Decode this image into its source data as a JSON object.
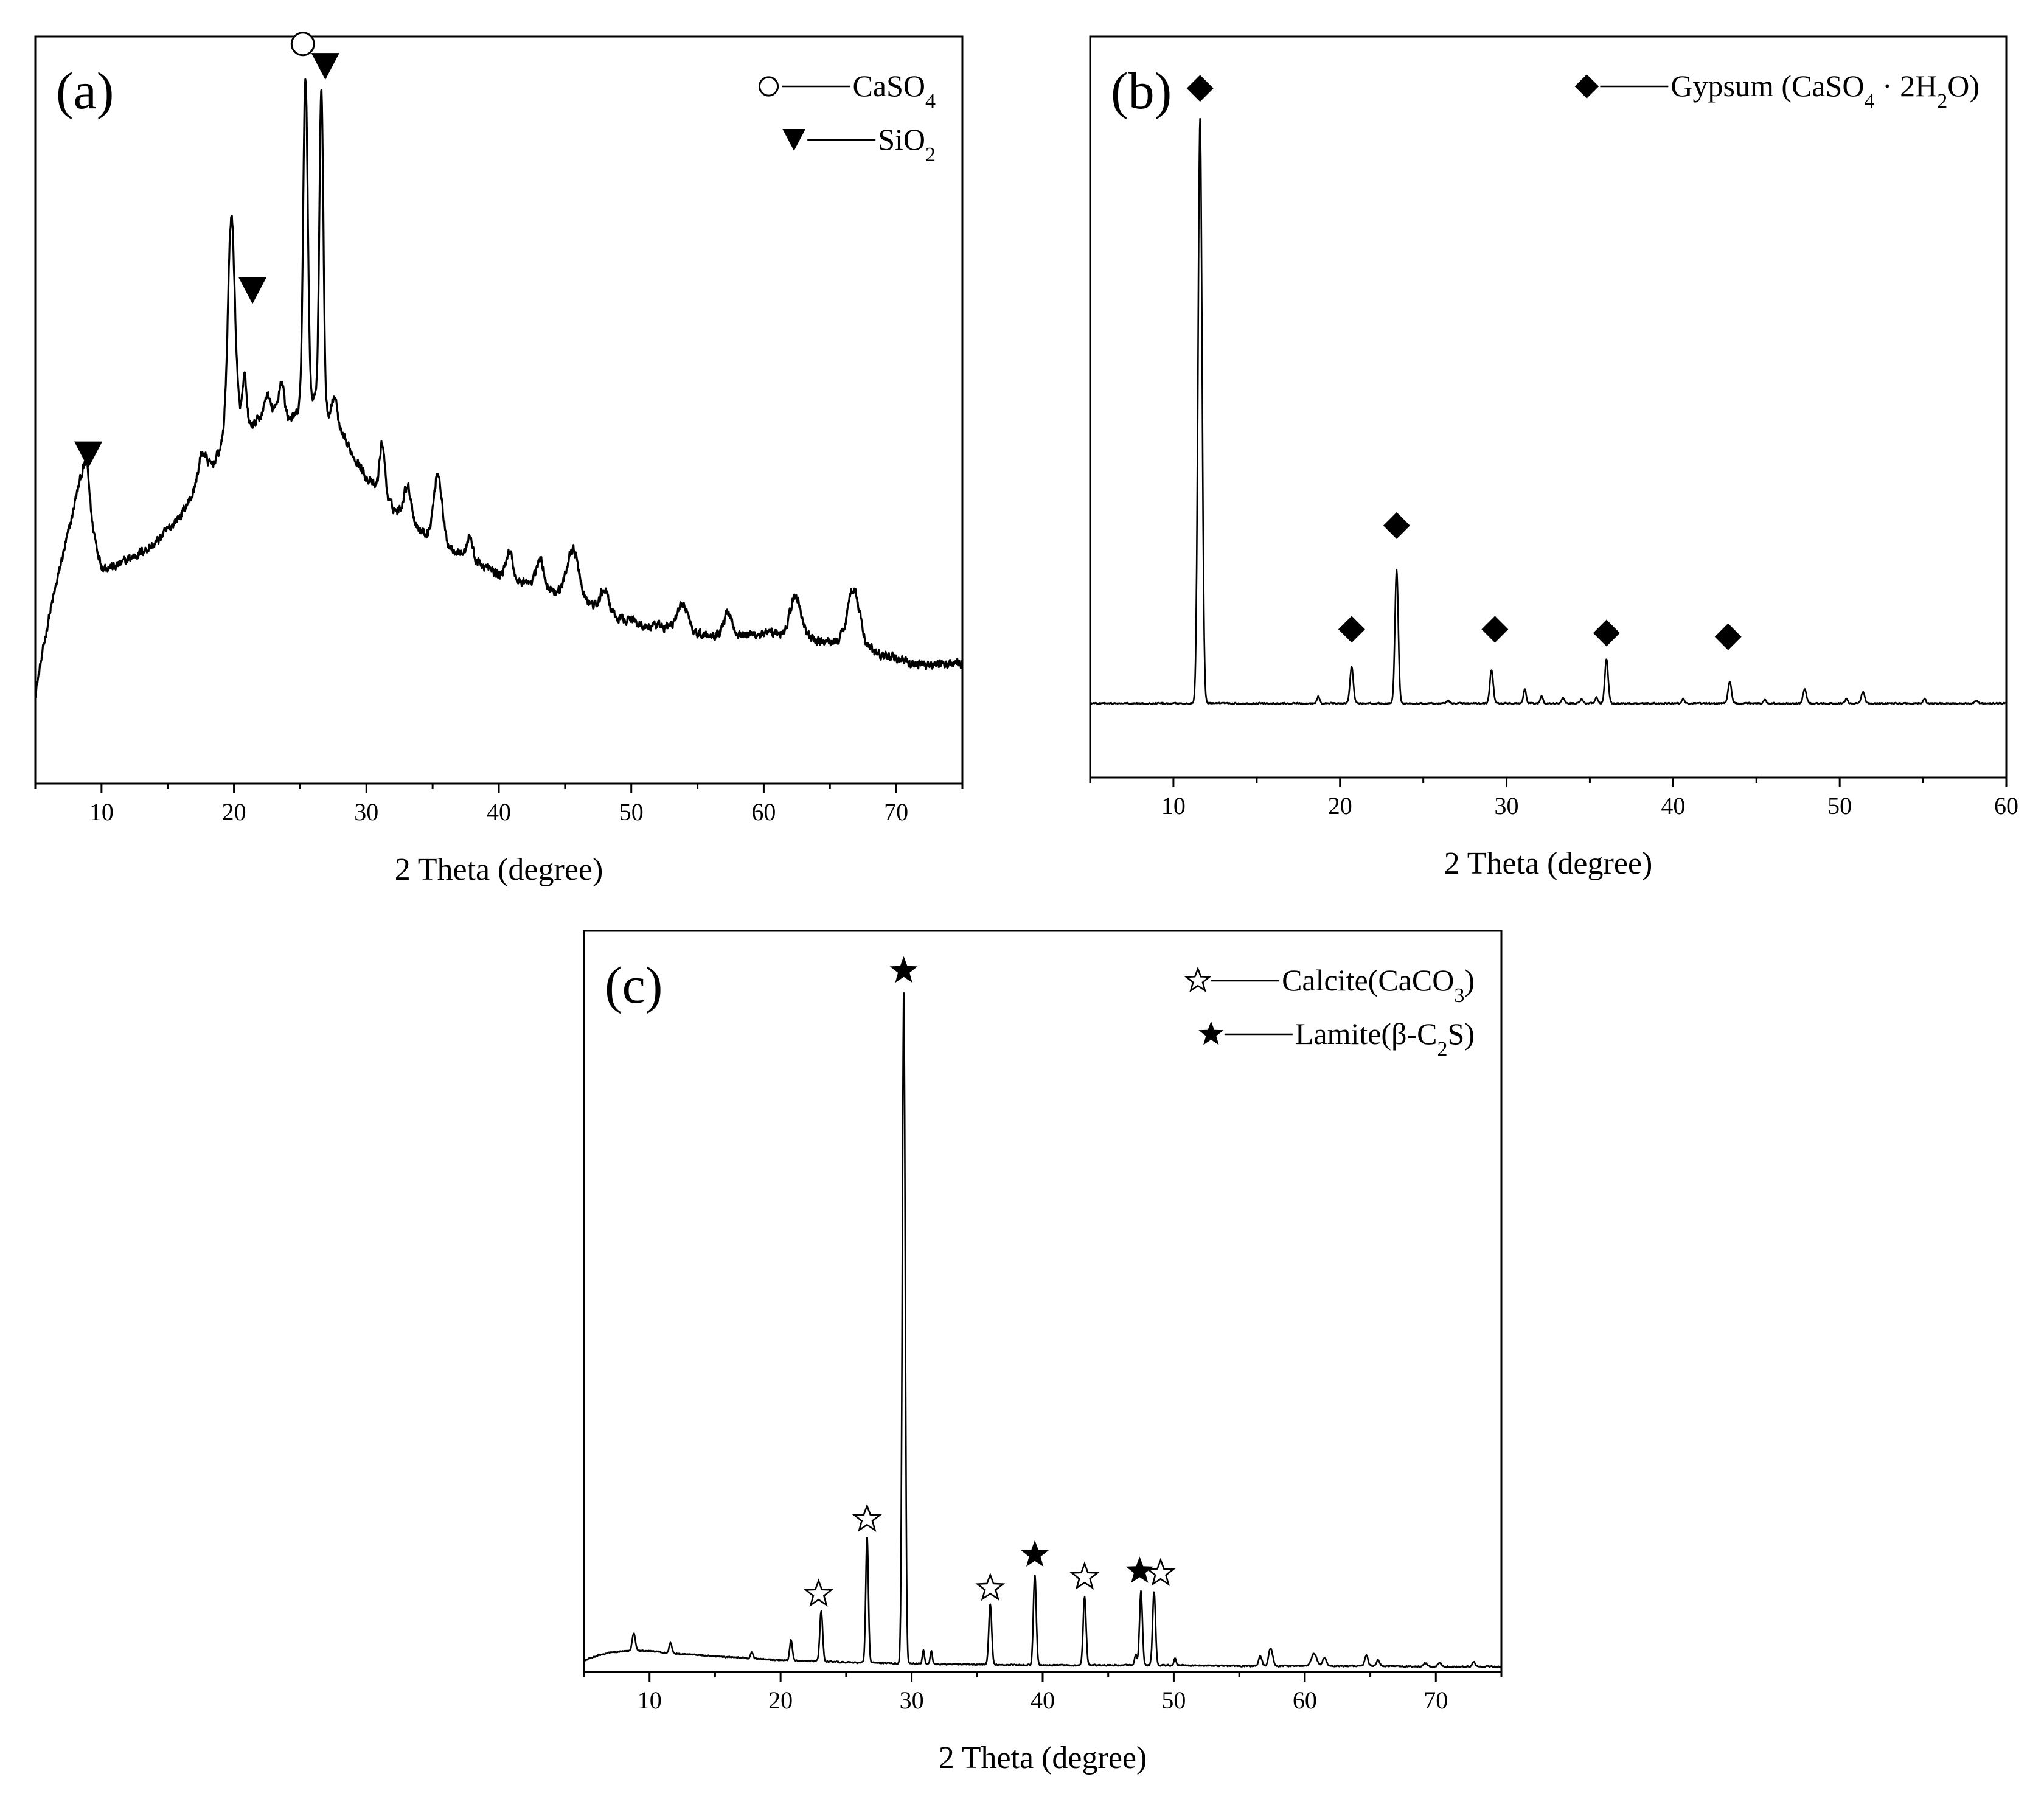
{
  "figure": {
    "description_free": true
  },
  "chart_data": [
    {
      "id": "a",
      "type": "line",
      "panel_label": "(a)",
      "xlabel": "2 Theta (degree)",
      "ylabel": "",
      "xlim": [
        5,
        75
      ],
      "ylim": [
        0,
        100
      ],
      "xticks": [
        10,
        20,
        30,
        40,
        50,
        60,
        70
      ],
      "minor_step": 5,
      "baseline": {
        "x": [
          5,
          6,
          7,
          8,
          8.5,
          8.9,
          9.3,
          10,
          11,
          12,
          13,
          14,
          15,
          16,
          17,
          17.5,
          18,
          18.5,
          19,
          19.4,
          19.8,
          20.2,
          20.6,
          21,
          21.5,
          22,
          22.5,
          23,
          23.5,
          24,
          24.5,
          25,
          25.6,
          26.2,
          26.9,
          27.5,
          28,
          29,
          30,
          31,
          32,
          33,
          34,
          35,
          36,
          37,
          38,
          39,
          40,
          41,
          42,
          43,
          44,
          45,
          46,
          47,
          48,
          49,
          50,
          51,
          52,
          53,
          54,
          55,
          56,
          57,
          58,
          59,
          60,
          61,
          62,
          63,
          64,
          65,
          66,
          67,
          68,
          69,
          70,
          71,
          72,
          73,
          74,
          75
        ],
        "y": [
          12,
          22,
          30,
          37,
          39,
          40,
          33,
          29,
          29,
          30,
          31,
          32,
          34,
          36,
          39,
          41,
          42,
          43,
          45,
          47,
          49,
          50,
          49,
          48,
          48,
          49,
          49,
          50,
          50,
          49,
          49,
          50,
          51,
          52,
          50,
          48,
          47,
          44,
          41,
          39,
          37,
          35,
          34,
          33,
          32,
          31,
          30,
          29,
          28,
          27,
          27,
          26,
          26,
          25,
          24,
          24,
          23,
          22,
          22,
          21,
          21,
          21,
          21,
          20,
          20,
          20,
          20,
          20,
          20,
          20,
          20,
          20,
          19,
          19,
          19,
          18,
          18,
          17,
          17,
          16,
          16,
          16,
          16,
          16
        ]
      },
      "peaks": [
        {
          "x": 8.8,
          "h": 3,
          "w": 0.5
        },
        {
          "x": 17.6,
          "h": 3,
          "w": 0.3
        },
        {
          "x": 19.8,
          "h": 27,
          "w": 0.25
        },
        {
          "x": 20.8,
          "h": 6,
          "w": 0.15
        },
        {
          "x": 22.5,
          "h": 3,
          "w": 0.2
        },
        {
          "x": 23.6,
          "h": 4,
          "w": 0.2
        },
        {
          "x": 25.4,
          "h": 44,
          "w": 0.17
        },
        {
          "x": 26.6,
          "h": 42,
          "w": 0.15
        },
        {
          "x": 27.6,
          "h": 4,
          "w": 0.2
        },
        {
          "x": 31.2,
          "h": 7,
          "w": 0.2
        },
        {
          "x": 33.1,
          "h": 5,
          "w": 0.3
        },
        {
          "x": 35.4,
          "h": 9,
          "w": 0.3
        },
        {
          "x": 37.8,
          "h": 3,
          "w": 0.2
        },
        {
          "x": 40.8,
          "h": 4,
          "w": 0.25
        },
        {
          "x": 43.1,
          "h": 4,
          "w": 0.3
        },
        {
          "x": 45.6,
          "h": 7,
          "w": 0.45
        },
        {
          "x": 48.0,
          "h": 3,
          "w": 0.3
        },
        {
          "x": 53.9,
          "h": 3,
          "w": 0.4
        },
        {
          "x": 57.3,
          "h": 3,
          "w": 0.3
        },
        {
          "x": 62.4,
          "h": 5,
          "w": 0.4
        },
        {
          "x": 66.8,
          "h": 8,
          "w": 0.45
        }
      ],
      "noise": 1.0,
      "markers": [
        {
          "symbol": "triangle-down",
          "x": 9.0,
          "y": 44
        },
        {
          "symbol": "triangle-down",
          "x": 21.4,
          "y": 66
        },
        {
          "symbol": "circle-open",
          "x": 25.2,
          "y": 99
        },
        {
          "symbol": "triangle-down",
          "x": 26.9,
          "y": 96
        }
      ],
      "legend": [
        {
          "symbol": "circle-open",
          "name": "CaSO",
          "sub": "4",
          "tail": ""
        },
        {
          "symbol": "triangle-down",
          "name": "SiO",
          "sub": "2",
          "tail": ""
        }
      ],
      "legend_position": "top-right"
    },
    {
      "id": "b",
      "type": "line",
      "panel_label": "(b)",
      "xlabel": "2 Theta (degree)",
      "ylabel": "",
      "xlim": [
        5,
        60
      ],
      "ylim": [
        0,
        100
      ],
      "xticks": [
        10,
        20,
        30,
        40,
        50,
        60
      ],
      "minor_step": 5,
      "baseline": {
        "x": [
          5,
          60
        ],
        "y": [
          10,
          10
        ]
      },
      "peaks": [
        {
          "x": 11.6,
          "h": 79,
          "w": 0.12
        },
        {
          "x": 18.7,
          "h": 1,
          "w": 0.08
        },
        {
          "x": 20.7,
          "h": 5,
          "w": 0.1
        },
        {
          "x": 23.4,
          "h": 18,
          "w": 0.1
        },
        {
          "x": 26.5,
          "h": 0.4,
          "w": 0.08
        },
        {
          "x": 29.1,
          "h": 4.5,
          "w": 0.1
        },
        {
          "x": 31.1,
          "h": 2,
          "w": 0.08
        },
        {
          "x": 32.1,
          "h": 1,
          "w": 0.08
        },
        {
          "x": 33.4,
          "h": 0.8,
          "w": 0.08
        },
        {
          "x": 34.5,
          "h": 0.6,
          "w": 0.08
        },
        {
          "x": 35.4,
          "h": 0.8,
          "w": 0.08
        },
        {
          "x": 36.0,
          "h": 6,
          "w": 0.1
        },
        {
          "x": 40.6,
          "h": 0.6,
          "w": 0.08
        },
        {
          "x": 43.4,
          "h": 3,
          "w": 0.1
        },
        {
          "x": 45.5,
          "h": 0.5,
          "w": 0.08
        },
        {
          "x": 47.9,
          "h": 2,
          "w": 0.1
        },
        {
          "x": 50.4,
          "h": 0.6,
          "w": 0.08
        },
        {
          "x": 51.4,
          "h": 1.6,
          "w": 0.1
        },
        {
          "x": 55.1,
          "h": 0.6,
          "w": 0.08
        },
        {
          "x": 58.2,
          "h": 0.4,
          "w": 0.08
        }
      ],
      "noise": 0.15,
      "markers": [
        {
          "symbol": "diamond",
          "x": 11.6,
          "y": 93
        },
        {
          "symbol": "diamond",
          "x": 20.7,
          "y": 20
        },
        {
          "symbol": "diamond",
          "x": 23.4,
          "y": 34
        },
        {
          "symbol": "diamond",
          "x": 29.3,
          "y": 20
        },
        {
          "symbol": "diamond",
          "x": 36.0,
          "y": 19.5
        },
        {
          "symbol": "diamond",
          "x": 43.3,
          "y": 19
        }
      ],
      "legend": [
        {
          "symbol": "diamond",
          "name": "Gypsum (CaSO",
          "sub": "4",
          "tail": " · 2H",
          "sub2": "2",
          "tail2": "O)"
        }
      ],
      "legend_position": "top-right"
    },
    {
      "id": "c",
      "type": "line",
      "panel_label": "(c)",
      "xlabel": "2 Theta (degree)",
      "ylabel": "",
      "xlim": [
        5,
        75
      ],
      "ylim": [
        0,
        100
      ],
      "xticks": [
        10,
        20,
        30,
        40,
        50,
        60,
        70
      ],
      "minor_step": 5,
      "baseline": {
        "x": [
          5,
          6,
          7,
          8,
          9,
          10,
          12,
          15,
          20,
          25,
          30,
          35,
          40,
          45,
          50,
          55,
          60,
          65,
          70,
          75
        ],
        "y": [
          1.5,
          2.2,
          2.6,
          2.8,
          2.9,
          2.8,
          2.5,
          2.1,
          1.6,
          1.3,
          1.1,
          1.0,
          0.9,
          0.9,
          0.9,
          0.8,
          0.8,
          0.8,
          0.7,
          0.7
        ]
      },
      "peaks": [
        {
          "x": 8.8,
          "h": 2.3,
          "w": 0.12
        },
        {
          "x": 11.6,
          "h": 1.4,
          "w": 0.1
        },
        {
          "x": 17.8,
          "h": 0.8,
          "w": 0.1
        },
        {
          "x": 20.8,
          "h": 2.8,
          "w": 0.1
        },
        {
          "x": 23.1,
          "h": 6.8,
          "w": 0.11
        },
        {
          "x": 26.6,
          "h": 17,
          "w": 0.1
        },
        {
          "x": 29.4,
          "h": 91,
          "w": 0.11
        },
        {
          "x": 30.9,
          "h": 1.8,
          "w": 0.08
        },
        {
          "x": 31.5,
          "h": 1.8,
          "w": 0.08
        },
        {
          "x": 36.0,
          "h": 8.2,
          "w": 0.11
        },
        {
          "x": 39.4,
          "h": 12.2,
          "w": 0.11
        },
        {
          "x": 43.2,
          "h": 9.2,
          "w": 0.11
        },
        {
          "x": 47.1,
          "h": 1.4,
          "w": 0.09
        },
        {
          "x": 47.5,
          "h": 10,
          "w": 0.11
        },
        {
          "x": 48.5,
          "h": 10,
          "w": 0.11
        },
        {
          "x": 50.1,
          "h": 1,
          "w": 0.08
        },
        {
          "x": 56.6,
          "h": 1.3,
          "w": 0.12
        },
        {
          "x": 57.4,
          "h": 2.4,
          "w": 0.15
        },
        {
          "x": 60.7,
          "h": 1.7,
          "w": 0.2
        },
        {
          "x": 61.5,
          "h": 1.1,
          "w": 0.15
        },
        {
          "x": 64.7,
          "h": 1.4,
          "w": 0.12
        },
        {
          "x": 65.6,
          "h": 0.8,
          "w": 0.12
        },
        {
          "x": 69.2,
          "h": 0.5,
          "w": 0.12
        },
        {
          "x": 70.3,
          "h": 0.6,
          "w": 0.12
        },
        {
          "x": 72.9,
          "h": 0.6,
          "w": 0.12
        }
      ],
      "noise": 0.15,
      "markers": [
        {
          "symbol": "star-open",
          "x": 22.9,
          "y": 10.5
        },
        {
          "symbol": "star-open",
          "x": 26.6,
          "y": 20.6
        },
        {
          "symbol": "star-filled",
          "x": 29.4,
          "y": 94.6
        },
        {
          "symbol": "star-open",
          "x": 36.0,
          "y": 11.3
        },
        {
          "symbol": "star-filled",
          "x": 39.4,
          "y": 15.8
        },
        {
          "symbol": "star-open",
          "x": 43.2,
          "y": 12.8
        },
        {
          "symbol": "star-filled",
          "x": 47.4,
          "y": 13.6
        },
        {
          "symbol": "star-open",
          "x": 49.0,
          "y": 13.3
        }
      ],
      "legend": [
        {
          "symbol": "star-open",
          "name": "Calcite(CaCO",
          "sub": "3",
          "tail": ")"
        },
        {
          "symbol": "star-filled",
          "name": "Lamite(β-C",
          "sub": "2",
          "tail": "S)"
        }
      ],
      "legend_position": "top-right"
    }
  ]
}
